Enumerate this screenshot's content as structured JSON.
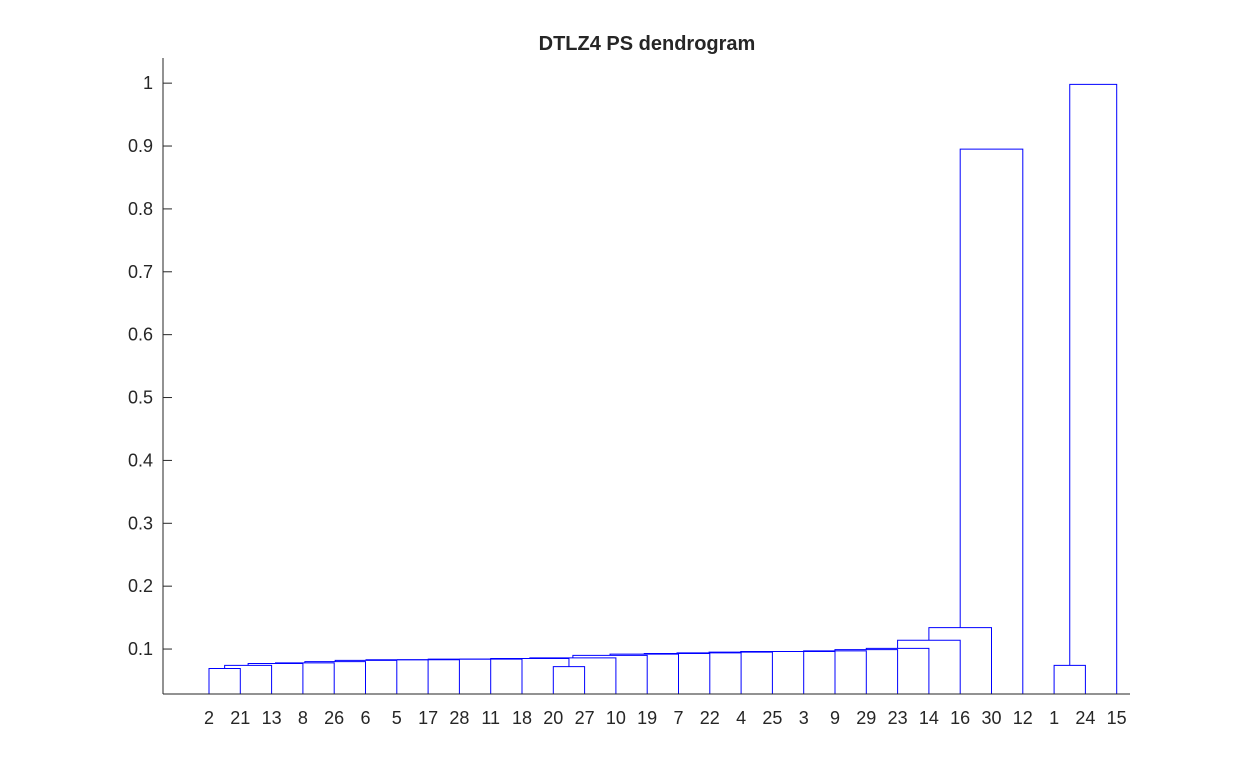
{
  "chart_data": {
    "type": "dendrogram",
    "title": "DTLZ4 PS dendrogram",
    "xlabel": "",
    "ylabel": "",
    "leaf_order": [
      "2",
      "21",
      "13",
      "8",
      "26",
      "6",
      "5",
      "17",
      "28",
      "11",
      "18",
      "20",
      "27",
      "10",
      "19",
      "7",
      "22",
      "4",
      "25",
      "3",
      "9",
      "29",
      "23",
      "14",
      "16",
      "30",
      "12",
      "1",
      "24",
      "15"
    ],
    "ylim": [
      0.0285,
      1.04
    ],
    "y_ticks": [
      0.1,
      0.2,
      0.3,
      0.4,
      0.5,
      0.6,
      0.7,
      0.8,
      0.9,
      1
    ],
    "y_tick_labels": [
      "0.1",
      "0.2",
      "0.3",
      "0.4",
      "0.5",
      "0.6",
      "0.7",
      "0.8",
      "0.9",
      "1"
    ],
    "grid": false,
    "line_color": "#0000ff",
    "links": [
      {
        "left": "2",
        "right": "21",
        "height": 0.069
      },
      {
        "left": "2+21",
        "right": "13",
        "height": 0.074
      },
      {
        "left": "2+21+13",
        "right": "8",
        "height": 0.077
      },
      {
        "left": "...8",
        "right": "26",
        "height": 0.078
      },
      {
        "left": "...26",
        "right": "6",
        "height": 0.08
      },
      {
        "left": "...6",
        "right": "5",
        "height": 0.082
      },
      {
        "left": "...5",
        "right": "17",
        "height": 0.083
      },
      {
        "left": "...17",
        "right": "28",
        "height": 0.083
      },
      {
        "left": "...28",
        "right": "11",
        "height": 0.084
      },
      {
        "left": "...11",
        "right": "18",
        "height": 0.084
      },
      {
        "left": "20",
        "right": "27",
        "height": 0.072
      },
      {
        "left": "...18",
        "right": "20+27",
        "height": 0.085
      },
      {
        "left": "...20+27",
        "right": "10",
        "height": 0.086
      },
      {
        "left": "...10",
        "right": "19",
        "height": 0.09
      },
      {
        "left": "...19",
        "right": "7",
        "height": 0.092
      },
      {
        "left": "...7",
        "right": "22",
        "height": 0.093
      },
      {
        "left": "...22",
        "right": "4",
        "height": 0.094
      },
      {
        "left": "...4",
        "right": "25",
        "height": 0.095
      },
      {
        "left": "...25",
        "right": "3",
        "height": 0.096
      },
      {
        "left": "...3",
        "right": "9",
        "height": 0.096
      },
      {
        "left": "...9",
        "right": "29",
        "height": 0.097
      },
      {
        "left": "...29",
        "right": "23",
        "height": 0.099
      },
      {
        "left": "...23",
        "right": "14",
        "height": 0.101
      },
      {
        "left": "...14",
        "right": "16",
        "height": 0.114
      },
      {
        "left": "...16",
        "right": "30",
        "height": 0.134
      },
      {
        "left": "1",
        "right": "24",
        "height": 0.074
      },
      {
        "left": "...30",
        "right": "12",
        "height": 0.895
      },
      {
        "left": "1+24",
        "right": "15",
        "height": 0.998
      }
    ]
  }
}
